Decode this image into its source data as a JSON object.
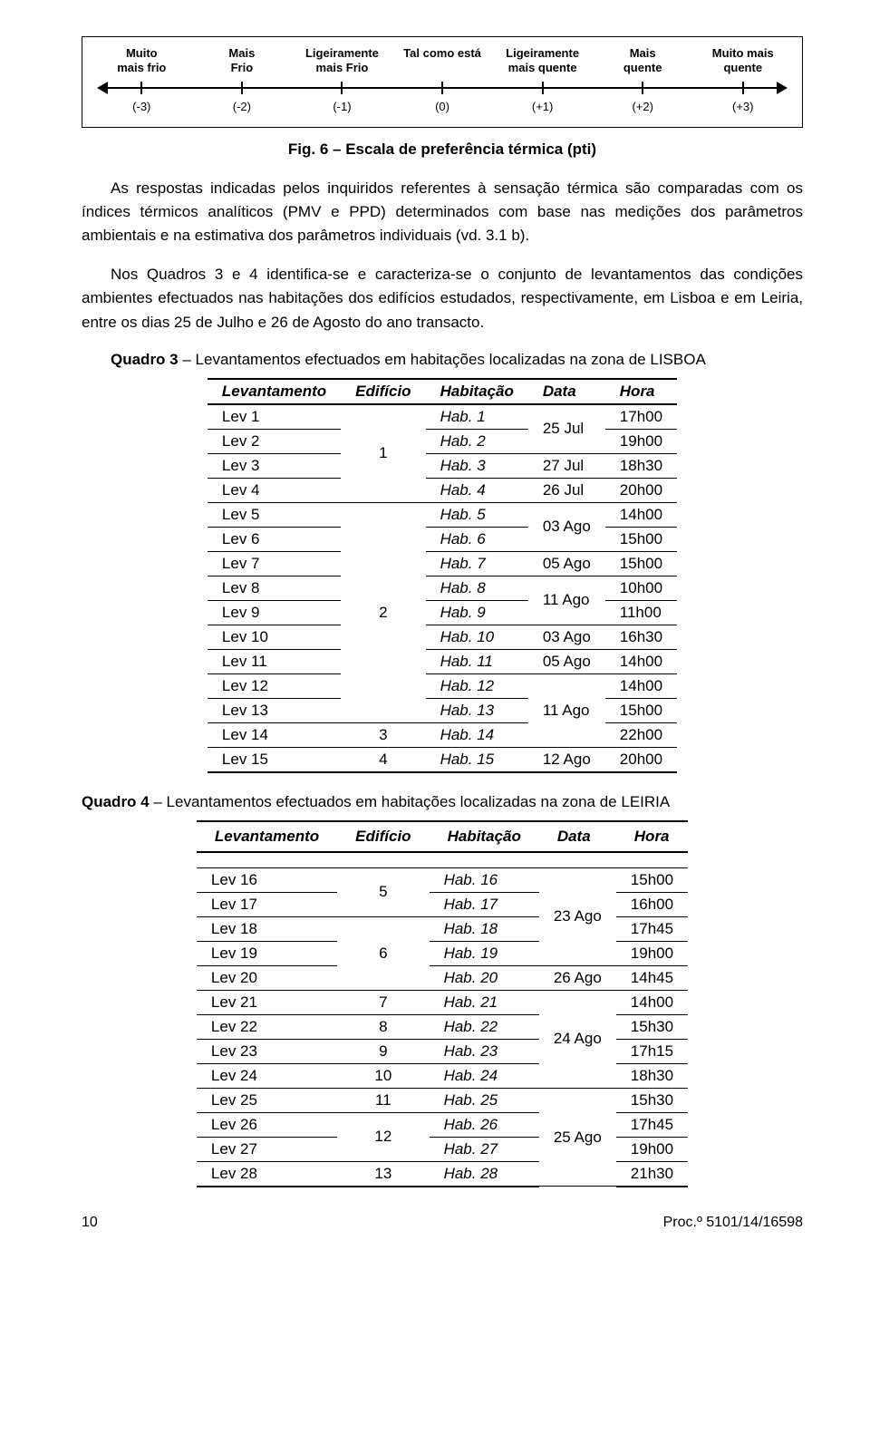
{
  "scale": {
    "labels_top": [
      "Muito\nmais frio",
      "Mais\nFrio",
      "Ligeiramente\nmais Frio",
      "Tal como está",
      "Ligeiramente\nmais quente",
      "Mais\nquente",
      "Muito mais\nquente"
    ],
    "labels_bottom": [
      "(-3)",
      "(-2)",
      "(-1)",
      "(0)",
      "(+1)",
      "(+2)",
      "(+3)"
    ],
    "axis_color": "#000000"
  },
  "caption": "Fig. 6 – Escala de preferência térmica (pti)",
  "paragraphs": [
    "As respostas indicadas pelos inquiridos referentes à sensação térmica são comparadas com os índices térmicos analíticos (PMV e PPD) determinados com base nas medições dos parâmetros ambientais e na estimativa dos parâmetros individuais (vd. 3.1 b).",
    "Nos Quadros 3 e 4 identifica-se e caracteriza-se o conjunto de levantamentos das condições ambientes efectuados nas habitações dos edifícios estudados, respectivamente, em Lisboa e em Leiria, entre os dias 25 de Julho e 26 de Agosto do ano transacto."
  ],
  "quadro3": {
    "title": "Quadro 3 – Levantamentos efectuados em habitações localizadas na zona de LISBOA",
    "headers": [
      "Levantamento",
      "Edifício",
      "Habitação",
      "Data",
      "Hora"
    ],
    "rows": [
      {
        "lev": "Lev 1",
        "edif": "",
        "hab": "Hab. 1",
        "data": "",
        "hora": "17h00",
        "edif_rs": 4,
        "data_rs": 2,
        "edif_val": "1",
        "data_val": "25 Jul"
      },
      {
        "lev": "Lev 2",
        "hab": "Hab. 2",
        "hora": "19h00"
      },
      {
        "lev": "Lev 3",
        "hab": "Hab. 3",
        "data": "27 Jul",
        "hora": "18h30"
      },
      {
        "lev": "Lev 4",
        "hab": "Hab. 4",
        "data": "26 Jul",
        "hora": "20h00"
      },
      {
        "lev": "Lev 5",
        "edif_rs": 9,
        "edif_val": "2",
        "hab": "Hab. 5",
        "data_rs": 2,
        "data_val": "03 Ago",
        "hora": "14h00"
      },
      {
        "lev": "Lev 6",
        "hab": "Hab. 6",
        "hora": "15h00"
      },
      {
        "lev": "Lev 7",
        "hab": "Hab. 7",
        "data": "05 Ago",
        "hora": "15h00"
      },
      {
        "lev": "Lev 8",
        "hab": "Hab. 8",
        "data_rs": 2,
        "data_val": "11 Ago",
        "hora": "10h00"
      },
      {
        "lev": "Lev 9",
        "hab": "Hab. 9",
        "hora": "11h00"
      },
      {
        "lev": "Lev 10",
        "hab": "Hab. 10",
        "data": "03 Ago",
        "hora": "16h30"
      },
      {
        "lev": "Lev 11",
        "hab": "Hab. 11",
        "data": "05 Ago",
        "hora": "14h00"
      },
      {
        "lev": "Lev 12",
        "hab": "Hab. 12",
        "data_rs": 3,
        "data_val": "11 Ago",
        "hora": "14h00"
      },
      {
        "lev": "Lev 13",
        "hab": "Hab. 13",
        "hora": "15h00"
      },
      {
        "lev": "Lev 14",
        "edif": "3",
        "hab": "Hab. 14",
        "hora": "22h00"
      },
      {
        "lev": "Lev 15",
        "edif": "4",
        "hab": "Hab. 15",
        "data": "12 Ago",
        "hora": "20h00"
      }
    ]
  },
  "quadro4": {
    "title": "Quadro 4 – Levantamentos efectuados em habitações localizadas na zona de LEIRIA",
    "headers": [
      "Levantamento",
      "Edifício",
      "Habitação",
      "Data",
      "Hora"
    ],
    "rows": [
      {
        "lev": "Lev 16",
        "edif_rs": 2,
        "edif_val": "5",
        "hab": "Hab. 16",
        "data_rs": 4,
        "data_val": "23 Ago",
        "hora": "15h00"
      },
      {
        "lev": "Lev 17",
        "hab": "Hab. 17",
        "hora": "16h00"
      },
      {
        "lev": "Lev 18",
        "edif_rs": 3,
        "edif_val": "6",
        "hab": "Hab. 18",
        "hora": "17h45"
      },
      {
        "lev": "Lev 19",
        "hab": "Hab. 19",
        "hora": "19h00"
      },
      {
        "lev": "Lev 20",
        "hab": "Hab. 20",
        "data": "26 Ago",
        "hora": "14h45"
      },
      {
        "lev": "Lev 21",
        "edif": "7",
        "hab": "Hab. 21",
        "data_rs": 4,
        "data_val": "24 Ago",
        "hora": "14h00"
      },
      {
        "lev": "Lev 22",
        "edif": "8",
        "hab": "Hab. 22",
        "hora": "15h30"
      },
      {
        "lev": "Lev 23",
        "edif": "9",
        "hab": "Hab. 23",
        "hora": "17h15"
      },
      {
        "lev": "Lev 24",
        "edif": "10",
        "hab": "Hab. 24",
        "hora": "18h30"
      },
      {
        "lev": "Lev 25",
        "edif": "11",
        "hab": "Hab. 25",
        "data_rs": 4,
        "data_val": "25 Ago",
        "hora": "15h30"
      },
      {
        "lev": "Lev 26",
        "edif_rs": 2,
        "edif_val": "12",
        "hab": "Hab. 26",
        "hora": "17h45"
      },
      {
        "lev": "Lev 27",
        "hab": "Hab. 27",
        "hora": "19h00"
      },
      {
        "lev": "Lev 28",
        "edif": "13",
        "hab": "Hab. 28",
        "hora": "21h30"
      }
    ]
  },
  "footer": {
    "page": "10",
    "ref": "Proc.º 5101/14/16598"
  }
}
